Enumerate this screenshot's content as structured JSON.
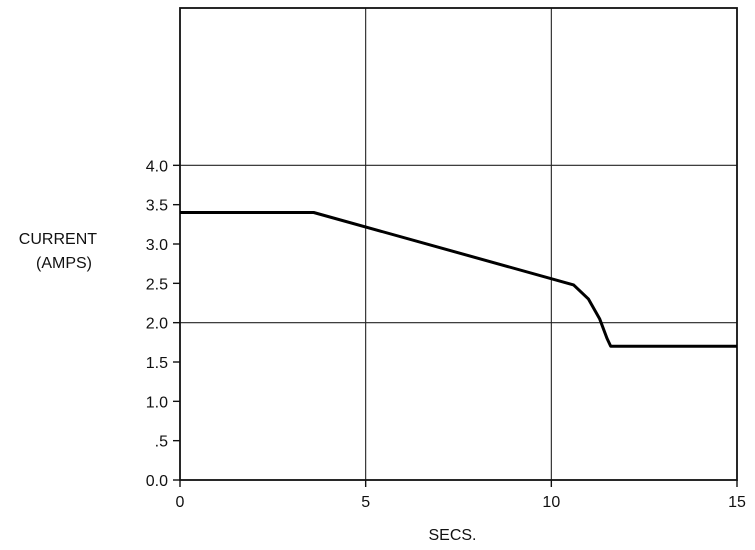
{
  "chart_data": {
    "type": "line",
    "title": "",
    "xlabel": "SECS.",
    "ylabel_lines": [
      "CURRENT",
      "(AMPS)"
    ],
    "xlim": [
      0,
      15
    ],
    "ylim": [
      0,
      6.0
    ],
    "grid": true,
    "x_ticks": [
      {
        "value": 0,
        "label": "0"
      },
      {
        "value": 5,
        "label": "5"
      },
      {
        "value": 10,
        "label": "10"
      },
      {
        "value": 15,
        "label": "15"
      }
    ],
    "y_ticks": [
      {
        "value": 0.0,
        "label": "0.0"
      },
      {
        "value": 0.5,
        "label": ".5"
      },
      {
        "value": 1.0,
        "label": "1.0"
      },
      {
        "value": 1.5,
        "label": "1.5"
      },
      {
        "value": 2.0,
        "label": "2.0"
      },
      {
        "value": 2.5,
        "label": "2.5"
      },
      {
        "value": 3.0,
        "label": "3.0"
      },
      {
        "value": 3.5,
        "label": "3.5"
      },
      {
        "value": 4.0,
        "label": "4.0"
      }
    ],
    "grid_x": [
      5,
      10
    ],
    "grid_y": [
      2.0,
      4.0
    ],
    "series": [
      {
        "color": "#000000",
        "points": [
          {
            "x": 0,
            "y": 3.4
          },
          {
            "x": 3.6,
            "y": 3.4
          },
          {
            "x": 10.6,
            "y": 2.48
          },
          {
            "x": 11.0,
            "y": 2.3
          },
          {
            "x": 11.3,
            "y": 2.05
          },
          {
            "x": 11.5,
            "y": 1.8
          },
          {
            "x": 11.6,
            "y": 1.7
          },
          {
            "x": 15,
            "y": 1.7
          }
        ]
      }
    ]
  }
}
